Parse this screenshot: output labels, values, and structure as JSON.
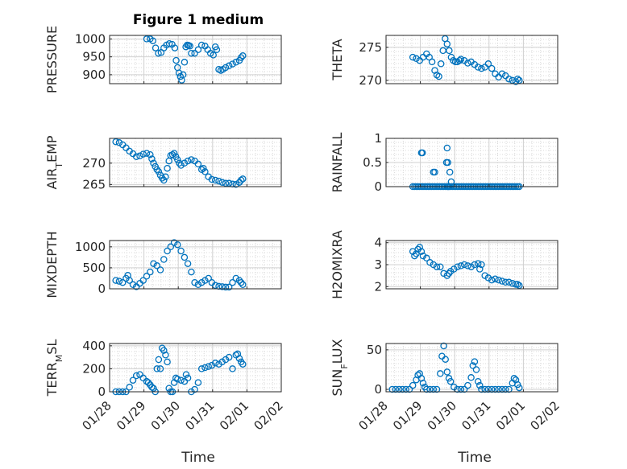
{
  "figure": {
    "title": "Figure 1 medium"
  },
  "colors": {
    "marker": "#0072BD",
    "axis": "#262626",
    "grid": "#d9d9d9"
  },
  "x_tick_labels": [
    "01/28",
    "01/29",
    "01/30",
    "01/31",
    "02/01",
    "02/02"
  ],
  "x_axis_label": "Time",
  "chart_data": [
    {
      "type": "scatter",
      "id": "pressure",
      "ylabel": "PRESSURE",
      "title": "Figure 1 medium",
      "xlim": [
        0,
        4
      ],
      "ylim": [
        875,
        1010
      ],
      "yticks": [
        900,
        950,
        1000
      ],
      "grid": true,
      "x": [
        0.9,
        1.0,
        1.08,
        1.16,
        1.24,
        1.32,
        1.4,
        1.48,
        1.56,
        1.64,
        1.72,
        1.76,
        1.8,
        1.84,
        1.88,
        1.92,
        1.96,
        2.0,
        2.04,
        2.08,
        2.12,
        2.16,
        2.2,
        2.3,
        2.4,
        2.5,
        2.6,
        2.68,
        2.76,
        2.84,
        2.9,
        2.94,
        3.0,
        3.06,
        3.12,
        3.2,
        3.3,
        3.4,
        3.5,
        3.6,
        3.65,
        3.7
      ],
      "y": [
        1000,
        1000,
        995,
        975,
        960,
        962,
        975,
        983,
        987,
        985,
        975,
        940,
        920,
        905,
        895,
        885,
        900,
        935,
        978,
        983,
        982,
        980,
        960,
        960,
        970,
        983,
        980,
        970,
        960,
        955,
        978,
        970,
        915,
        912,
        915,
        920,
        925,
        930,
        935,
        940,
        948,
        953
      ]
    },
    {
      "type": "scatter",
      "id": "theta",
      "ylabel": "THETA",
      "xlim": [
        0,
        4
      ],
      "ylim": [
        269.5,
        276.8
      ],
      "yticks": [
        270,
        275
      ],
      "grid": true,
      "x": [
        0.6,
        0.7,
        0.8,
        0.9,
        1.0,
        1.08,
        1.16,
        1.24,
        1.3,
        1.36,
        1.42,
        1.48,
        1.54,
        1.6,
        1.66,
        1.72,
        1.78,
        1.84,
        1.9,
        1.96,
        2.0,
        2.1,
        2.2,
        2.3,
        2.4,
        2.5,
        2.6,
        2.7,
        2.8,
        2.9,
        3.0,
        3.1,
        3.2,
        3.3,
        3.4,
        3.5,
        3.6,
        3.65,
        3.7
      ],
      "y": [
        273.5,
        273.3,
        273.0,
        273.5,
        274.0,
        273.5,
        272.8,
        271.5,
        270.8,
        270.6,
        272.5,
        274.5,
        276.3,
        275.5,
        274.5,
        273.5,
        273.0,
        272.8,
        272.8,
        273.0,
        273.2,
        273.0,
        272.6,
        272.8,
        272.4,
        272.0,
        271.8,
        272.0,
        272.5,
        271.8,
        271.0,
        270.5,
        271.0,
        270.7,
        270.2,
        270.0,
        269.8,
        270.2,
        270.0
      ]
    },
    {
      "type": "scatter",
      "id": "air_temp",
      "ylabel_main": "AIR",
      "ylabel_sub": "T",
      "ylabel_tail": "EMP",
      "xlim": [
        0,
        4
      ],
      "ylim": [
        264.5,
        275.8
      ],
      "yticks": [
        265,
        270
      ],
      "grid": true,
      "x": [
        0.0,
        0.1,
        0.2,
        0.3,
        0.4,
        0.5,
        0.6,
        0.7,
        0.8,
        0.9,
        1.0,
        1.05,
        1.1,
        1.15,
        1.2,
        1.25,
        1.3,
        1.35,
        1.4,
        1.45,
        1.5,
        1.55,
        1.6,
        1.65,
        1.7,
        1.75,
        1.8,
        1.85,
        1.9,
        2.0,
        2.1,
        2.2,
        2.3,
        2.4,
        2.5,
        2.55,
        2.6,
        2.7,
        2.8,
        2.9,
        3.0,
        3.1,
        3.2,
        3.3,
        3.4,
        3.5,
        3.6,
        3.65,
        3.7
      ],
      "y": [
        275.0,
        274.8,
        274.3,
        273.6,
        272.8,
        272.2,
        271.5,
        271.7,
        272.1,
        272.3,
        272.0,
        271.0,
        270.0,
        269.2,
        268.5,
        268.0,
        267.2,
        266.5,
        266.0,
        266.8,
        268.8,
        270.5,
        271.8,
        272.0,
        272.3,
        271.5,
        270.8,
        270.0,
        269.5,
        270.0,
        270.5,
        270.8,
        270.5,
        269.8,
        268.5,
        268.8,
        268.0,
        266.8,
        266.2,
        266.0,
        265.8,
        265.5,
        265.3,
        265.3,
        265.1,
        265.0,
        265.5,
        266.0,
        266.3
      ]
    },
    {
      "type": "scatter",
      "id": "rainfall",
      "ylabel": "RAINFALL",
      "xlim": [
        0,
        4
      ],
      "ylim": [
        0,
        1
      ],
      "yticks": [
        0,
        0.5,
        1
      ],
      "grid": true,
      "x": [
        0.6,
        0.65,
        0.7,
        0.75,
        0.8,
        0.85,
        0.9,
        0.95,
        1.0,
        1.05,
        1.1,
        1.15,
        1.2,
        1.25,
        1.3,
        1.35,
        1.4,
        1.45,
        1.5,
        1.55,
        1.6,
        1.62,
        1.64,
        1.66,
        1.7,
        1.75,
        1.8,
        1.85,
        1.9,
        1.95,
        2.0,
        2.05,
        2.1,
        2.15,
        2.2,
        2.25,
        2.3,
        2.35,
        2.4,
        2.45,
        2.5,
        2.55,
        2.6,
        2.65,
        2.7,
        2.75,
        2.8,
        2.85,
        2.9,
        2.95,
        3.0,
        3.05,
        3.1,
        3.15,
        3.2,
        3.25,
        3.3,
        3.35,
        3.4,
        3.45,
        3.5,
        3.55,
        3.6,
        3.65,
        3.7,
        0.85,
        0.88,
        1.2,
        1.24,
        1.58,
        1.6,
        1.62,
        1.68,
        1.72
      ],
      "y": [
        0,
        0,
        0,
        0,
        0,
        0,
        0,
        0,
        0,
        0,
        0,
        0,
        0,
        0,
        0,
        0,
        0,
        0,
        0,
        0,
        0,
        0,
        0,
        0,
        0,
        0,
        0,
        0,
        0,
        0,
        0,
        0,
        0,
        0,
        0,
        0,
        0,
        0,
        0,
        0,
        0,
        0,
        0,
        0,
        0,
        0,
        0,
        0,
        0,
        0,
        0,
        0,
        0,
        0,
        0,
        0,
        0,
        0,
        0,
        0,
        0,
        0,
        0,
        0,
        0,
        0.7,
        0.7,
        0.3,
        0.3,
        0.5,
        0.8,
        0.5,
        0.3,
        0.1
      ]
    },
    {
      "type": "scatter",
      "id": "mixdepth",
      "ylabel": "MIXDEPTH",
      "xlim": [
        0,
        4
      ],
      "ylim": [
        0,
        1150
      ],
      "yticks": [
        0,
        500,
        1000
      ],
      "grid": true,
      "x": [
        0.0,
        0.1,
        0.2,
        0.3,
        0.35,
        0.4,
        0.5,
        0.6,
        0.7,
        0.8,
        0.9,
        1.0,
        1.1,
        1.2,
        1.3,
        1.4,
        1.5,
        1.6,
        1.7,
        1.8,
        1.9,
        2.0,
        2.1,
        2.2,
        2.3,
        2.4,
        2.5,
        2.6,
        2.7,
        2.8,
        2.9,
        3.0,
        3.1,
        3.2,
        3.3,
        3.4,
        3.5,
        3.6,
        3.65,
        3.7
      ],
      "y": [
        200,
        180,
        150,
        250,
        320,
        200,
        100,
        50,
        130,
        200,
        300,
        400,
        600,
        550,
        450,
        700,
        900,
        1000,
        1100,
        1050,
        900,
        750,
        600,
        400,
        150,
        100,
        150,
        200,
        250,
        150,
        80,
        60,
        50,
        40,
        40,
        150,
        250,
        200,
        150,
        100
      ]
    },
    {
      "type": "scatter",
      "id": "h2omixra",
      "ylabel": "H2OMIXRA",
      "xlim": [
        0,
        4
      ],
      "ylim": [
        1.9,
        4.1
      ],
      "yticks": [
        2,
        3,
        4
      ],
      "grid": true,
      "x": [
        0.6,
        0.65,
        0.7,
        0.75,
        0.8,
        0.85,
        0.9,
        1.0,
        1.1,
        1.2,
        1.3,
        1.4,
        1.5,
        1.6,
        1.65,
        1.7,
        1.8,
        1.9,
        2.0,
        2.1,
        2.2,
        2.3,
        2.4,
        2.5,
        2.55,
        2.6,
        2.7,
        2.8,
        2.9,
        3.0,
        3.1,
        3.2,
        3.3,
        3.4,
        3.5,
        3.6,
        3.65,
        3.7
      ],
      "y": [
        3.6,
        3.4,
        3.5,
        3.7,
        3.8,
        3.6,
        3.4,
        3.3,
        3.1,
        3.0,
        2.9,
        2.9,
        2.6,
        2.5,
        2.6,
        2.7,
        2.8,
        2.9,
        2.95,
        3.0,
        2.95,
        2.9,
        3.0,
        3.05,
        2.8,
        3.0,
        2.5,
        2.4,
        2.3,
        2.35,
        2.3,
        2.25,
        2.2,
        2.2,
        2.15,
        2.1,
        2.1,
        2.05
      ]
    },
    {
      "type": "scatter",
      "id": "terr_msl",
      "ylabel_main": "TERR",
      "ylabel_sub": "M",
      "ylabel_tail": "SL",
      "xlim": [
        0,
        4
      ],
      "ylim": [
        0,
        420
      ],
      "yticks": [
        0,
        200,
        400
      ],
      "grid": true,
      "x": [
        0.0,
        0.1,
        0.2,
        0.3,
        0.4,
        0.5,
        0.6,
        0.7,
        0.8,
        0.9,
        0.95,
        1.0,
        1.05,
        1.1,
        1.15,
        1.2,
        1.25,
        1.3,
        1.35,
        1.4,
        1.45,
        1.5,
        1.55,
        1.6,
        1.65,
        1.7,
        1.75,
        1.8,
        1.9,
        2.0,
        2.05,
        2.1,
        2.2,
        2.3,
        2.4,
        2.5,
        2.6,
        2.7,
        2.8,
        2.9,
        3.0,
        3.1,
        3.2,
        3.3,
        3.4,
        3.5,
        3.55,
        3.6,
        3.65,
        3.7
      ],
      "y": [
        0,
        0,
        0,
        0,
        40,
        100,
        140,
        150,
        120,
        90,
        80,
        60,
        40,
        30,
        0,
        200,
        280,
        200,
        380,
        360,
        320,
        260,
        30,
        0,
        0,
        80,
        120,
        110,
        100,
        90,
        150,
        120,
        0,
        20,
        80,
        200,
        210,
        220,
        230,
        250,
        240,
        260,
        280,
        300,
        200,
        320,
        330,
        290,
        260,
        240
      ]
    },
    {
      "type": "scatter",
      "id": "sun_flux",
      "ylabel_main": "SUN",
      "ylabel_sub": "F",
      "ylabel_tail": "LUX",
      "xlim": [
        0,
        4
      ],
      "ylim": [
        -3,
        58
      ],
      "yticks": [
        0,
        50
      ],
      "grid": true,
      "x": [
        0.0,
        0.1,
        0.2,
        0.3,
        0.4,
        0.5,
        0.6,
        0.7,
        0.75,
        0.8,
        0.85,
        0.9,
        0.95,
        1.0,
        1.1,
        1.2,
        1.3,
        1.4,
        1.45,
        1.5,
        1.55,
        1.6,
        1.65,
        1.7,
        1.8,
        1.9,
        2.0,
        2.1,
        2.2,
        2.3,
        2.35,
        2.4,
        2.45,
        2.5,
        2.55,
        2.6,
        2.7,
        2.8,
        2.9,
        3.0,
        3.1,
        3.2,
        3.3,
        3.4,
        3.5,
        3.55,
        3.6,
        3.65,
        3.7
      ],
      "y": [
        0,
        0,
        0,
        0,
        0,
        0,
        5,
        12,
        18,
        20,
        14,
        8,
        3,
        0,
        0,
        0,
        0,
        20,
        42,
        55,
        38,
        22,
        14,
        10,
        3,
        0,
        0,
        0,
        5,
        15,
        30,
        35,
        25,
        10,
        5,
        0,
        0,
        0,
        0,
        0,
        0,
        0,
        0,
        0,
        8,
        14,
        12,
        6,
        2
      ]
    }
  ]
}
